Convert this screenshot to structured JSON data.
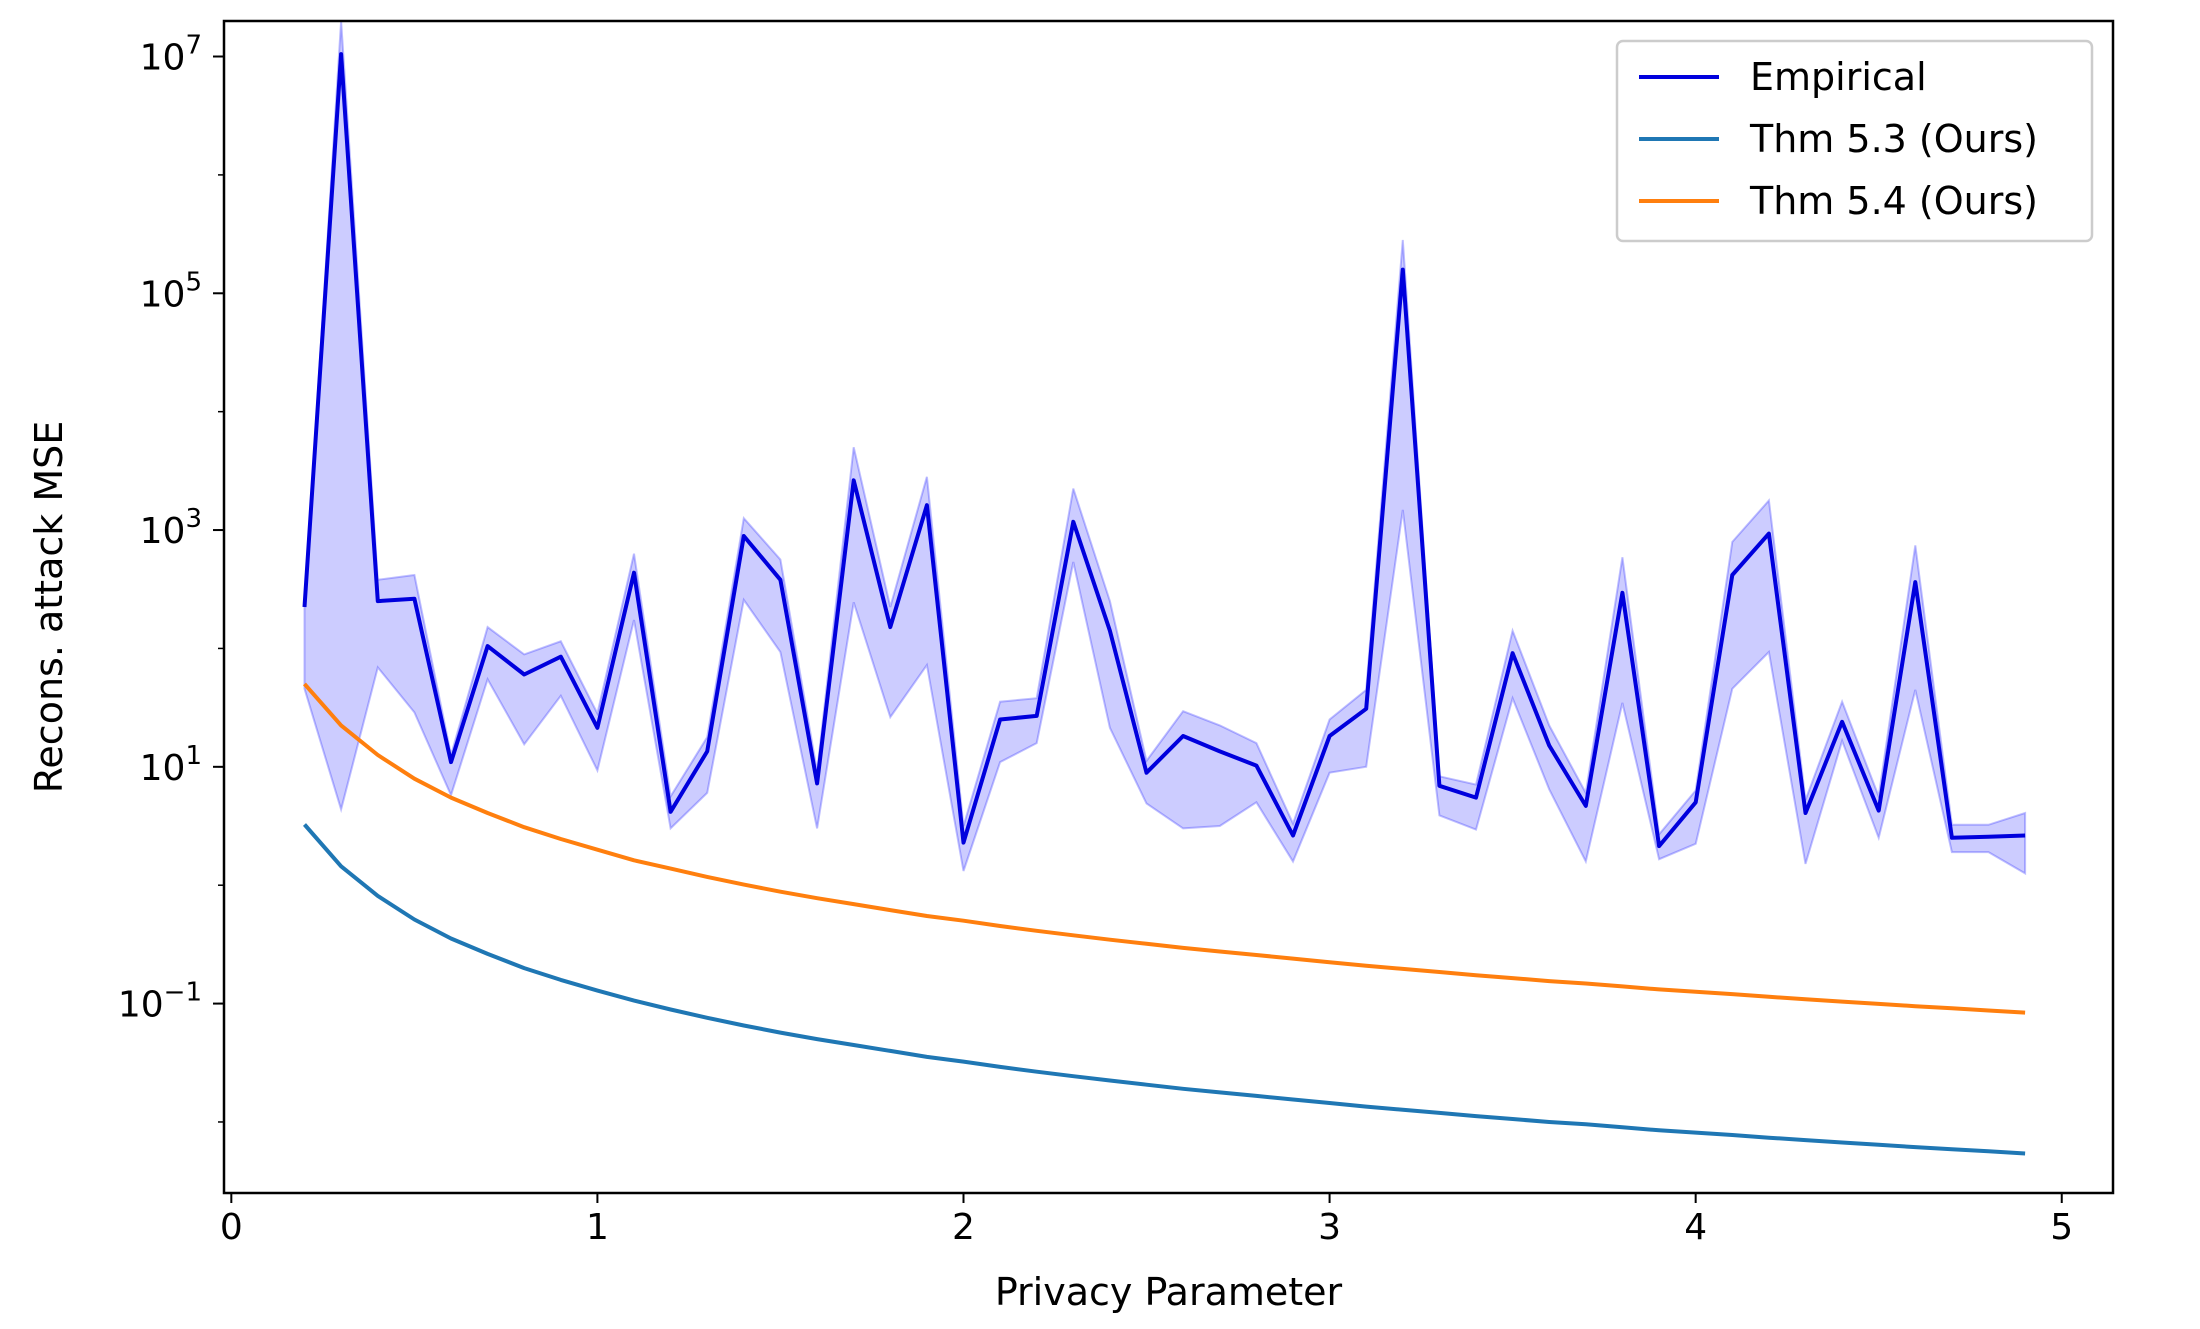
{
  "chart_data": {
    "type": "line",
    "title": "",
    "xlabel": "Privacy Parameter",
    "ylabel": "Recons. attack MSE",
    "xlim": [
      -0.02,
      5.14
    ],
    "ylim_log10": [
      -2.6,
      7.3
    ],
    "yscale": "log",
    "grid": false,
    "legend_position": "top-right",
    "x_ticks": [
      {
        "value": 0,
        "label": "0"
      },
      {
        "value": 1,
        "label": "1"
      },
      {
        "value": 2,
        "label": "2"
      },
      {
        "value": 3,
        "label": "3"
      },
      {
        "value": 4,
        "label": "4"
      },
      {
        "value": 5,
        "label": "5"
      }
    ],
    "y_ticks": [
      {
        "exp": -1,
        "base": "10",
        "sup": "−1"
      },
      {
        "exp": 1,
        "base": "10",
        "sup": "1"
      },
      {
        "exp": 3,
        "base": "10",
        "sup": "3"
      },
      {
        "exp": 5,
        "base": "10",
        "sup": "5"
      },
      {
        "exp": 7,
        "base": "10",
        "sup": "7"
      }
    ],
    "x": [
      0.2,
      0.3,
      0.4,
      0.5,
      0.6,
      0.7,
      0.8,
      0.9,
      1.0,
      1.1,
      1.2,
      1.3,
      1.4,
      1.5,
      1.6,
      1.7,
      1.8,
      1.9,
      2.0,
      2.1,
      2.2,
      2.3,
      2.4,
      2.5,
      2.6,
      2.7,
      2.8,
      2.9,
      3.0,
      3.1,
      3.2,
      3.3,
      3.4,
      3.5,
      3.6,
      3.7,
      3.8,
      3.9,
      4.0,
      4.1,
      4.2,
      4.3,
      4.4,
      4.5,
      4.6,
      4.7,
      4.8,
      4.9
    ],
    "series": [
      {
        "name": "Empirical",
        "color": "#0000dd",
        "log10_values": [
          2.35,
          7.02,
          2.4,
          2.42,
          1.04,
          2.02,
          1.78,
          1.93,
          1.33,
          2.64,
          0.62,
          1.13,
          2.95,
          2.58,
          0.86,
          3.42,
          2.18,
          3.21,
          0.36,
          1.4,
          1.43,
          3.07,
          2.15,
          0.95,
          1.26,
          1.13,
          1.01,
          0.42,
          1.26,
          1.49,
          5.2,
          0.84,
          0.74,
          1.96,
          1.18,
          0.67,
          2.47,
          0.33,
          0.7,
          2.62,
          2.97,
          0.61,
          1.38,
          0.63,
          2.56,
          0.4,
          0.41,
          0.42
        ],
        "band_upper_log10": [
          2.35,
          7.3,
          2.58,
          2.62,
          1.1,
          2.18,
          1.95,
          2.06,
          1.45,
          2.8,
          0.75,
          1.25,
          3.1,
          2.75,
          0.96,
          3.7,
          2.35,
          3.45,
          0.5,
          1.55,
          1.58,
          3.35,
          2.4,
          1.05,
          1.47,
          1.35,
          1.2,
          0.52,
          1.4,
          1.65,
          5.45,
          0.92,
          0.85,
          2.15,
          1.35,
          0.78,
          2.77,
          0.43,
          0.8,
          2.9,
          3.25,
          0.72,
          1.55,
          0.75,
          2.87,
          0.51,
          0.51,
          0.61
        ],
        "band_lower_log10": [
          1.66,
          0.64,
          1.84,
          1.46,
          0.76,
          1.74,
          1.19,
          1.6,
          0.97,
          2.24,
          0.48,
          0.78,
          2.41,
          1.97,
          0.48,
          2.39,
          1.42,
          1.86,
          0.12,
          1.04,
          1.2,
          2.73,
          1.33,
          0.69,
          0.48,
          0.5,
          0.7,
          0.2,
          0.95,
          1.0,
          3.17,
          0.59,
          0.47,
          1.58,
          0.81,
          0.2,
          1.54,
          0.22,
          0.35,
          1.66,
          1.97,
          0.18,
          1.22,
          0.4,
          1.65,
          0.28,
          0.28,
          0.1
        ]
      },
      {
        "name": "Thm 5.3 (Ours)",
        "color": "#1f77b4",
        "log10_values": [
          0.513,
          0.16,
          -0.09,
          -0.29,
          -0.45,
          -0.58,
          -0.7,
          -0.8,
          -0.89,
          -0.975,
          -1.05,
          -1.12,
          -1.185,
          -1.245,
          -1.3,
          -1.35,
          -1.4,
          -1.45,
          -1.49,
          -1.535,
          -1.575,
          -1.613,
          -1.65,
          -1.685,
          -1.72,
          -1.75,
          -1.78,
          -1.81,
          -1.84,
          -1.87,
          -1.897,
          -1.923,
          -1.95,
          -1.975,
          -2.0,
          -2.02,
          -2.045,
          -2.07,
          -2.09,
          -2.11,
          -2.133,
          -2.153,
          -2.173,
          -2.193,
          -2.212,
          -2.23,
          -2.248,
          -2.266
        ]
      },
      {
        "name": "Thm 5.4 (Ours)",
        "color": "#ff7f0e",
        "log10_values": [
          1.7,
          1.35,
          1.1,
          0.9,
          0.74,
          0.61,
          0.49,
          0.39,
          0.3,
          0.21,
          0.14,
          0.07,
          0.005,
          -0.055,
          -0.11,
          -0.16,
          -0.21,
          -0.26,
          -0.3,
          -0.345,
          -0.385,
          -0.423,
          -0.46,
          -0.495,
          -0.53,
          -0.56,
          -0.59,
          -0.62,
          -0.65,
          -0.68,
          -0.707,
          -0.733,
          -0.76,
          -0.785,
          -0.81,
          -0.83,
          -0.855,
          -0.88,
          -0.9,
          -0.92,
          -0.943,
          -0.963,
          -0.983,
          -1.003,
          -1.022,
          -1.04,
          -1.058,
          -1.076
        ]
      }
    ]
  }
}
